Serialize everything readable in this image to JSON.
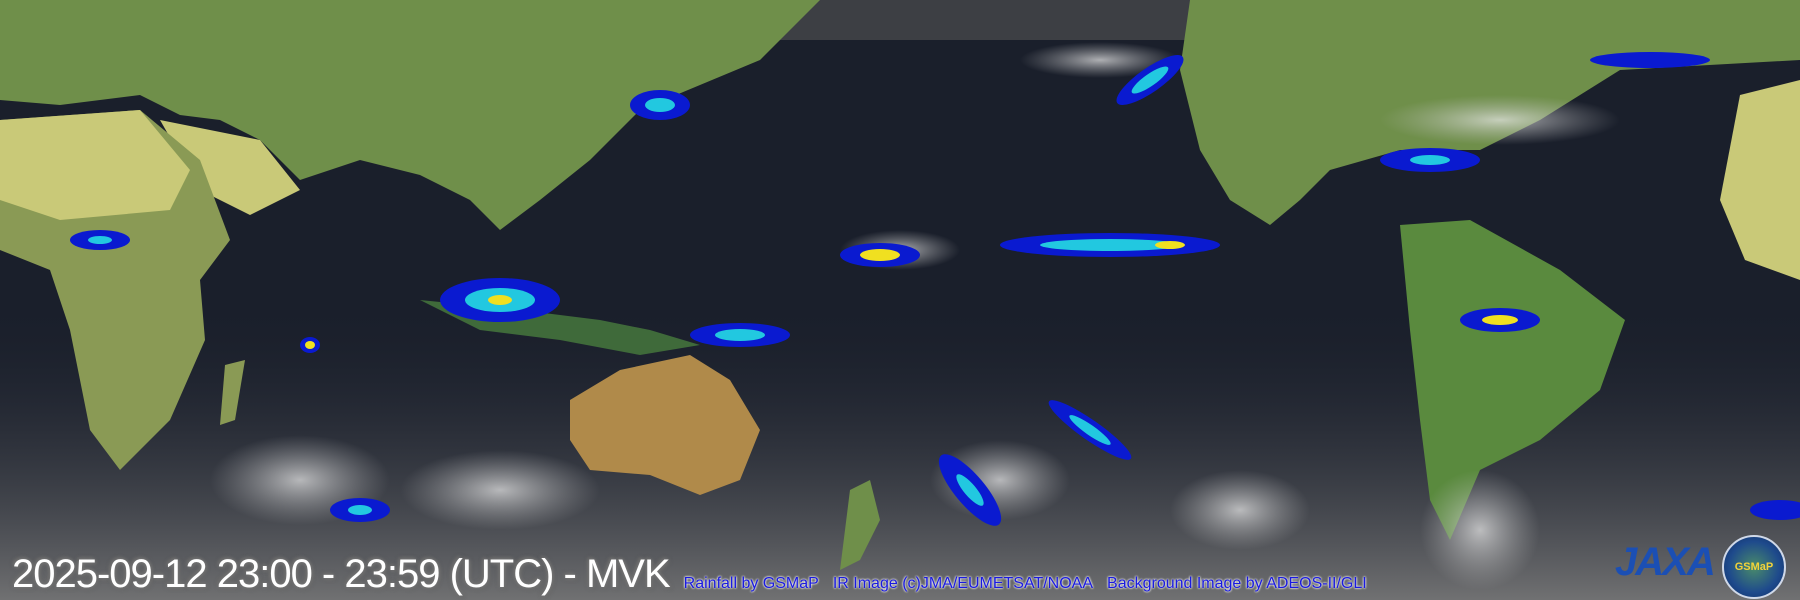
{
  "overlay": {
    "timestamp": "2025-09-12 23:00 - 23:59 (UTC) - MVK",
    "credit_rainfall": "Rainfall by GSMaP",
    "credit_ir": "IR Image (c)JMA/EUMETSAT/NOAA",
    "credit_background": "Background Image by ADEOS-II/GLI"
  },
  "logos": {
    "jaxa": "JAXA",
    "gsmap": "GSMaP"
  },
  "colors": {
    "ocean": "#1a1f2b",
    "land": "#6f8f4a",
    "desert": "#c9c978",
    "rain_light": "#0a1ad0",
    "rain_mid": "#22c8e0",
    "rain_heavy": "#f0e020",
    "credit_text": "#1a1ae0"
  }
}
